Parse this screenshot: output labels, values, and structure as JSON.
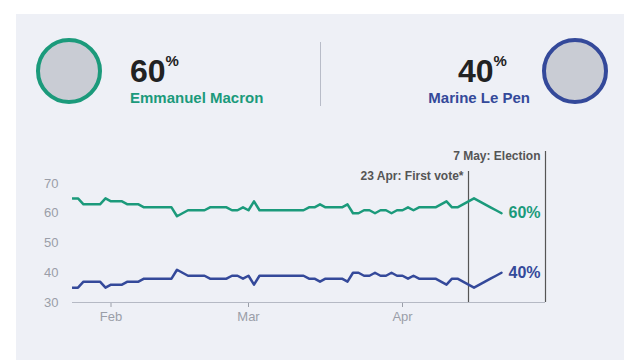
{
  "chart_data": {
    "type": "line",
    "categories": [
      null,
      null,
      null,
      null,
      null,
      null,
      null,
      "Feb",
      null,
      null,
      null,
      null,
      null,
      null,
      null,
      null,
      null,
      null,
      null,
      null,
      null,
      null,
      null,
      null,
      null,
      null,
      null,
      null,
      null,
      null,
      null,
      null,
      "Mar",
      null,
      null,
      null,
      null,
      null,
      null,
      null,
      null,
      null,
      null,
      null,
      null,
      null,
      null,
      null,
      null,
      null,
      null,
      null,
      null,
      null,
      null,
      null,
      null,
      null,
      null,
      null,
      "Apr",
      null,
      null,
      null,
      null,
      null,
      null,
      null,
      null,
      null,
      null,
      null,
      null,
      null,
      null,
      null,
      null,
      null,
      null,
      null,
      null,
      null,
      null,
      null,
      null,
      null,
      null
    ],
    "series": [
      {
        "name": "Emmanuel Macron",
        "color": "#1b9a7b",
        "label": "60%",
        "values": [
          65,
          65,
          63,
          63,
          63,
          63,
          65,
          64,
          64,
          64,
          63,
          63,
          63,
          62,
          62,
          62,
          62,
          62,
          62,
          59,
          60,
          61,
          61,
          61,
          61,
          62,
          62,
          62,
          62,
          61,
          61,
          62,
          61,
          64,
          61,
          61,
          61,
          61,
          61,
          61,
          61,
          61,
          61,
          62,
          62,
          63,
          62,
          62,
          62,
          62,
          63,
          60,
          60,
          61,
          61,
          60,
          61,
          61,
          60,
          61,
          61,
          62,
          61,
          62,
          62,
          62,
          62,
          63,
          64,
          62,
          62,
          63,
          64,
          65,
          64,
          63,
          62,
          61,
          60,
          null,
          null,
          null,
          null,
          null,
          null,
          null,
          null
        ]
      },
      {
        "name": "Marine Le Pen",
        "color": "#34499a",
        "label": "40%",
        "values": [
          35,
          35,
          37,
          37,
          37,
          37,
          35,
          36,
          36,
          36,
          37,
          37,
          37,
          38,
          38,
          38,
          38,
          38,
          38,
          41,
          40,
          39,
          39,
          39,
          39,
          38,
          38,
          38,
          38,
          39,
          39,
          38,
          39,
          36,
          39,
          39,
          39,
          39,
          39,
          39,
          39,
          39,
          39,
          38,
          38,
          37,
          38,
          38,
          38,
          38,
          37,
          40,
          40,
          39,
          39,
          40,
          39,
          39,
          40,
          39,
          39,
          38,
          39,
          38,
          38,
          38,
          38,
          37,
          36,
          38,
          38,
          37,
          36,
          35,
          36,
          37,
          38,
          39,
          40,
          null,
          null,
          null,
          null,
          null,
          null,
          null,
          null
        ]
      }
    ],
    "ylim": [
      30,
      70
    ],
    "yticks": [
      30,
      40,
      50,
      60,
      70
    ],
    "grid": false,
    "annotations": [
      {
        "text": "23 Apr: First vote*",
        "x": 72
      },
      {
        "text": "7 May: Election",
        "x": 86
      }
    ]
  }
}
